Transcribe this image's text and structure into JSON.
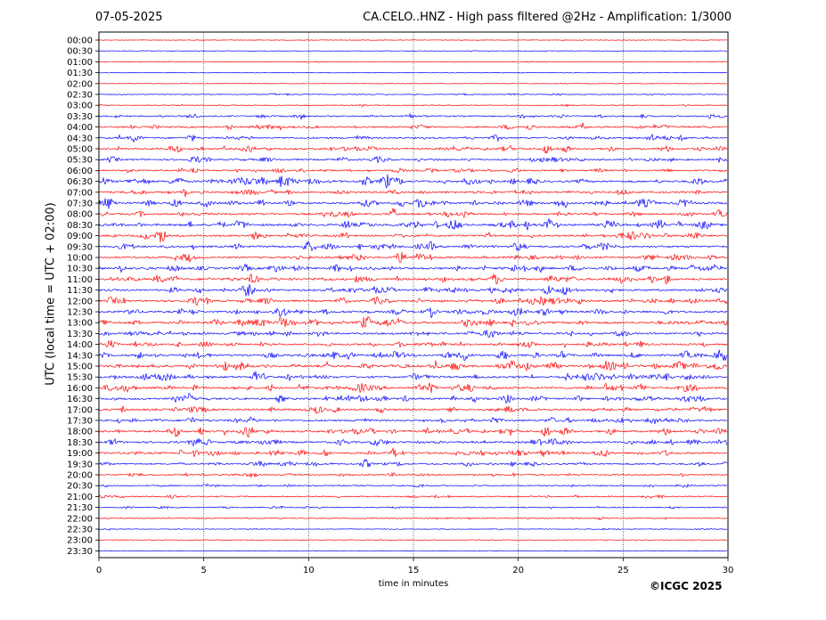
{
  "date": "07-05-2025",
  "title": "CA.CELO..HNZ - High pass filtered @2Hz - Amplification: 1/3000",
  "copyright": "©ICGC 2025",
  "chart_data": {
    "type": "line",
    "subtype": "helicorder",
    "xlabel": "time in minutes",
    "ylabel": "UTC (local time = UTC + 02:00)",
    "xlim": [
      0,
      30
    ],
    "x_ticks": [
      0,
      5,
      10,
      15,
      20,
      25,
      30
    ],
    "y_tick_labels": [
      "00:00",
      "00:30",
      "01:00",
      "01:30",
      "02:00",
      "02:30",
      "03:00",
      "03:30",
      "04:00",
      "04:30",
      "05:00",
      "05:30",
      "06:00",
      "06:30",
      "07:00",
      "07:30",
      "08:00",
      "08:30",
      "09:00",
      "09:30",
      "10:00",
      "10:30",
      "11:00",
      "11:30",
      "12:00",
      "12:30",
      "13:00",
      "13:30",
      "14:00",
      "14:30",
      "15:00",
      "15:30",
      "16:00",
      "16:30",
      "17:00",
      "17:30",
      "18:00",
      "18:30",
      "19:00",
      "19:30",
      "20:00",
      "20:30",
      "21:00",
      "21:30",
      "22:00",
      "22:30",
      "23:00",
      "23:30"
    ],
    "trace_colors": [
      "#ff0000",
      "#0000ff"
    ],
    "trace_activity": [
      0.05,
      0.05,
      0.12,
      0.12,
      0.05,
      0.2,
      0.2,
      0.5,
      0.6,
      0.6,
      0.65,
      0.6,
      0.55,
      0.85,
      0.7,
      0.9,
      0.7,
      0.9,
      0.75,
      0.8,
      0.7,
      0.85,
      0.9,
      0.75,
      0.8,
      0.8,
      0.85,
      0.75,
      0.7,
      0.85,
      0.95,
      0.85,
      0.9,
      0.8,
      0.75,
      0.7,
      0.8,
      0.75,
      0.75,
      0.55,
      0.45,
      0.4,
      0.35,
      0.3,
      0.25,
      0.15,
      0.08,
      0.05
    ],
    "grid": "vertical dotted at x ticks",
    "legend": "none"
  }
}
